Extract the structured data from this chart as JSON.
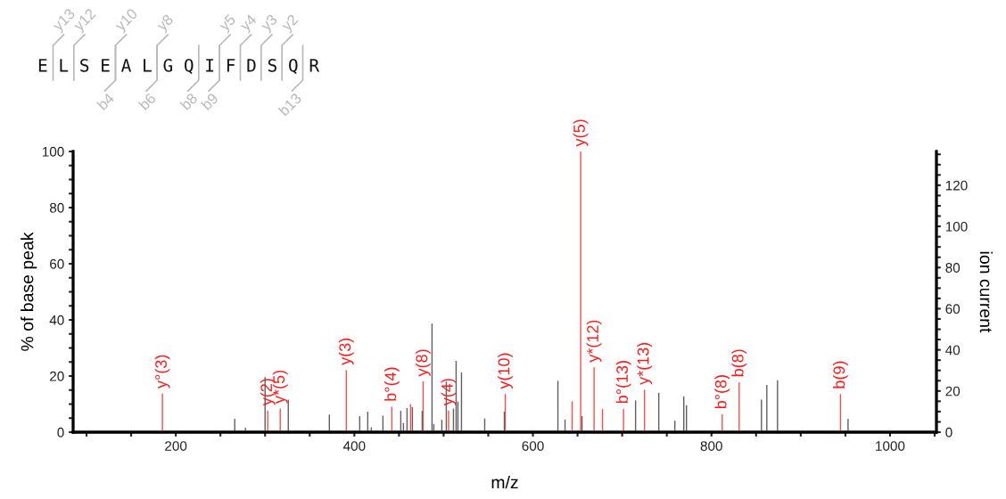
{
  "chart_data": {
    "type": "bar",
    "xlabel": "m/z",
    "ylabel": "% of base peak",
    "y2label": "ion current",
    "xlim": [
      85,
      1052
    ],
    "xticks": [
      {
        "value": 100,
        "label": null
      },
      {
        "value": 150,
        "label": null
      },
      200,
      {
        "value": 250,
        "label": null
      },
      {
        "value": 300,
        "label": null
      },
      {
        "value": 350,
        "label": null
      },
      400,
      {
        "value": 450,
        "label": null
      },
      {
        "value": 500,
        "label": null
      },
      {
        "value": 550,
        "label": null
      },
      600,
      {
        "value": 650,
        "label": null
      },
      {
        "value": 700,
        "label": null
      },
      {
        "value": 750,
        "label": null
      },
      800,
      {
        "value": 850,
        "label": null
      },
      {
        "value": 900,
        "label": null
      },
      {
        "value": 950,
        "label": null
      },
      1000,
      {
        "value": 1050,
        "label": null
      }
    ],
    "ylim": [
      0,
      100
    ],
    "yticks": [
      0,
      {
        "value": 5,
        "label": null
      },
      {
        "value": 10,
        "label": null
      },
      {
        "value": 15,
        "label": null
      },
      20,
      {
        "value": 25,
        "label": null
      },
      {
        "value": 30,
        "label": null
      },
      {
        "value": 35,
        "label": null
      },
      40,
      {
        "value": 45,
        "label": null
      },
      {
        "value": 50,
        "label": null
      },
      {
        "value": 55,
        "label": null
      },
      60,
      {
        "value": 65,
        "label": null
      },
      {
        "value": 70,
        "label": null
      },
      {
        "value": 75,
        "label": null
      },
      80,
      {
        "value": 85,
        "label": null
      },
      {
        "value": 90,
        "label": null
      },
      {
        "value": 95,
        "label": null
      },
      100
    ],
    "y2lim": [
      0,
      136.4
    ],
    "y2ticks": [
      0,
      {
        "value": 5,
        "label": null
      },
      {
        "value": 10,
        "label": null
      },
      {
        "value": 15,
        "label": null
      },
      20,
      {
        "value": 25,
        "label": null
      },
      {
        "value": 30,
        "label": null
      },
      {
        "value": 35,
        "label": null
      },
      40,
      {
        "value": 45,
        "label": null
      },
      {
        "value": 50,
        "label": null
      },
      {
        "value": 55,
        "label": null
      },
      60,
      {
        "value": 65,
        "label": null
      },
      {
        "value": 70,
        "label": null
      },
      {
        "value": 75,
        "label": null
      },
      80,
      {
        "value": 85,
        "label": null
      },
      {
        "value": 90,
        "label": null
      },
      {
        "value": 95,
        "label": null
      },
      100,
      {
        "value": 105,
        "label": null
      },
      {
        "value": 110,
        "label": null
      },
      {
        "value": 115,
        "label": null
      },
      120,
      {
        "value": 125,
        "label": null
      },
      {
        "value": 130,
        "label": null
      },
      {
        "value": 135,
        "label": null
      }
    ],
    "grid": false,
    "legend": false,
    "series": [
      {
        "color": "#ff4d4d",
        "x": [
          185,
          303,
          317,
          391,
          442,
          463,
          477,
          505.5,
          569,
          644,
          653.5,
          668.5,
          678,
          701.5,
          725,
          812,
          831,
          944.5
        ],
        "values": [
          13.8,
          7.7,
          8.4,
          22.1,
          9.1,
          10,
          18.1,
          7.7,
          13.6,
          11,
          100,
          23.1,
          8.3,
          8.3,
          15.1,
          6.4,
          17.8,
          13.6
        ]
      },
      {
        "color": "#606060",
        "x": [
          266,
          278,
          300,
          326,
          372,
          406,
          415,
          419,
          432,
          452,
          455,
          459,
          465,
          476,
          487,
          489,
          498,
          503,
          511,
          514,
          516,
          520,
          546,
          568,
          628,
          636,
          655,
          715,
          741,
          759,
          769,
          772,
          856,
          862,
          874,
          953
        ],
        "values": [
          4.8,
          1.6,
          19.6,
          11.6,
          6.3,
          5.7,
          7.3,
          1.7,
          5.9,
          7.6,
          3.2,
          8.6,
          8.9,
          7.6,
          38.7,
          2.9,
          4.4,
          18,
          8.4,
          25.4,
          10.9,
          21.3,
          4.9,
          7.3,
          18.3,
          4.5,
          5.7,
          11.3,
          14,
          4.1,
          12.7,
          9.6,
          11.6,
          16.8,
          18.5,
          4.8
        ]
      }
    ],
    "annotations": [
      "E L S E A L G Q I F D S Q R",
      "y13",
      "y12",
      "y10",
      "y8",
      "y5",
      "y4",
      "y3",
      "y2",
      "b4",
      "b6",
      "b8",
      "b9",
      "b13",
      {
        "text": "y°(3)",
        "x": 185,
        "y": 13.8
      },
      {
        "text": "y(2)",
        "x": 303,
        "y": 7.7
      },
      {
        "text": "y*(5)",
        "x": 317,
        "y": 8.4
      },
      {
        "text": "y(3)",
        "x": 391,
        "y": 22.1
      },
      {
        "text": "b°(4)",
        "x": 442,
        "y": 9.1
      },
      {
        "text": "y(8)",
        "x": 477,
        "y": 18.1
      },
      {
        "text": "y(4)",
        "x": 505.5,
        "y": 7.7
      },
      {
        "text": "y(10)",
        "x": 569,
        "y": 13.6
      },
      {
        "text": "y(5)",
        "x": 653.5,
        "y": 100
      },
      {
        "text": "y*(12)",
        "x": 668.5,
        "y": 23.1
      },
      {
        "text": "b°(13)",
        "x": 701.5,
        "y": 8.3
      },
      {
        "text": "y*(13)",
        "x": 725,
        "y": 15.1
      },
      {
        "text": "b°(8)",
        "x": 812,
        "y": 6.4
      },
      {
        "text": "b(8)",
        "x": 831,
        "y": 17.8
      },
      {
        "text": "b(9)",
        "x": 944.5,
        "y": 13.6
      }
    ]
  }
}
